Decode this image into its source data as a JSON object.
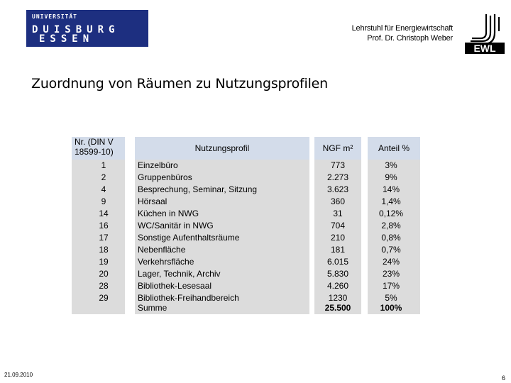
{
  "header": {
    "uni_line1": "UNIVERSITÄT",
    "uni_line2": "DUISBURG",
    "uni_line3": "ESSEN",
    "chair_line1": "Lehrstuhl für Energiewirtschaft",
    "chair_line2": "Prof. Dr. Christoph Weber",
    "ewl_logo_text": "EWL"
  },
  "slide": {
    "title": "Zuordnung von Räumen zu Nutzungsprofilen",
    "date": "21.09.2010",
    "page_number": "6"
  },
  "table": {
    "headers": {
      "nr": "Nr. (DIN V 18599-10)",
      "profile": "Nutzungsprofil",
      "ngf": "NGF m²",
      "share": "Anteil %"
    },
    "rows": [
      {
        "nr": "1",
        "profile": "Einzelbüro",
        "ngf": "773",
        "share": "3%"
      },
      {
        "nr": "2",
        "profile": "Gruppenbüros",
        "ngf": "2.273",
        "share": "9%"
      },
      {
        "nr": "4",
        "profile": "Besprechung, Seminar, Sitzung",
        "ngf": "3.623",
        "share": "14%"
      },
      {
        "nr": "9",
        "profile": "Hörsaal",
        "ngf": "360",
        "share": "1,4%"
      },
      {
        "nr": "14",
        "profile": "Küchen in NWG",
        "ngf": "31",
        "share": "0,12%"
      },
      {
        "nr": "16",
        "profile": "WC/Sanitär in NWG",
        "ngf": "704",
        "share": "2,8%"
      },
      {
        "nr": "17",
        "profile": "Sonstige Aufenthaltsräume",
        "ngf": "210",
        "share": "0,8%"
      },
      {
        "nr": "18",
        "profile": "Nebenfläche",
        "ngf": "181",
        "share": "0,7%"
      },
      {
        "nr": "19",
        "profile": "Verkehrsfläche",
        "ngf": "6.015",
        "share": "24%"
      },
      {
        "nr": "20",
        "profile": "Lager, Technik, Archiv",
        "ngf": "5.830",
        "share": "23%"
      },
      {
        "nr": "28",
        "profile": "Bibliothek-Lesesaal",
        "ngf": "4.260",
        "share": "17%"
      },
      {
        "nr": "29",
        "profile": "Bibliothek-Freihandbereich",
        "ngf": "1230",
        "share": "5%"
      }
    ],
    "total": {
      "label": "Summe",
      "ngf": "25.500",
      "share": "100%"
    }
  }
}
